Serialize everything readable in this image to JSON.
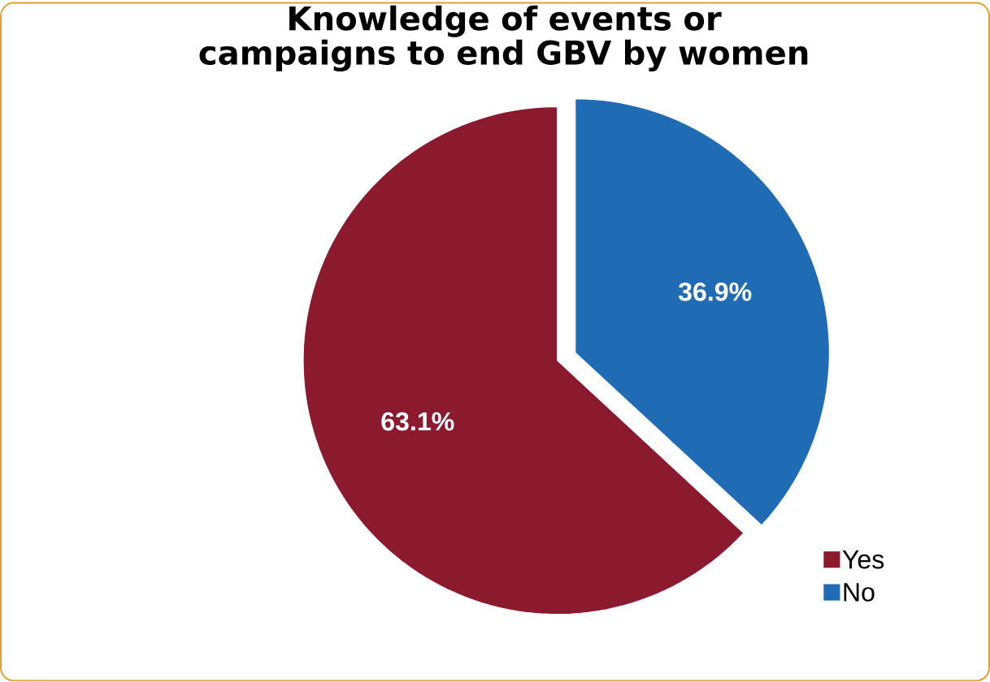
{
  "chart_data": {
    "type": "pie",
    "title": "Knowledge of events or campaigns to end GBV by women",
    "categories": [
      "Yes",
      "No"
    ],
    "values": [
      63.1,
      36.9
    ],
    "colors": [
      "#8c1a2f",
      "#1f6cb5"
    ],
    "value_labels": [
      "63.1%",
      "36.9%"
    ],
    "legend": "bottom right"
  }
}
